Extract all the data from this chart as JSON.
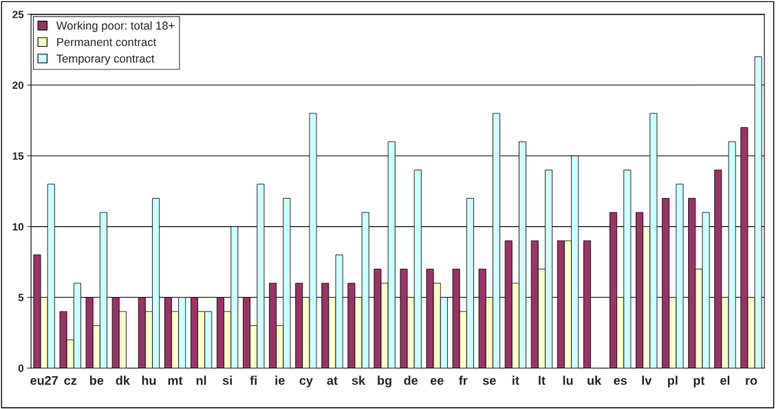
{
  "chart_data": {
    "type": "bar",
    "categories": [
      "eu27",
      "cz",
      "be",
      "dk",
      "hu",
      "mt",
      "nl",
      "si",
      "fi",
      "ie",
      "cy",
      "at",
      "sk",
      "bg",
      "de",
      "ee",
      "fr",
      "se",
      "it",
      "lt",
      "lu",
      "uk",
      "es",
      "lv",
      "pl",
      "pt",
      "el",
      "ro"
    ],
    "series": [
      {
        "name": "Working poor: total 18+",
        "color": "#993366",
        "values": [
          8,
          4,
          5,
          5,
          5,
          5,
          5,
          5,
          5,
          6,
          6,
          6,
          6,
          7,
          7,
          7,
          7,
          7,
          9,
          9,
          9,
          9,
          11,
          11,
          12,
          12,
          14,
          17
        ]
      },
      {
        "name": "Permanent contract",
        "color": "#ffffcc",
        "values": [
          5,
          2,
          3,
          4,
          4,
          4,
          4,
          4,
          3,
          3,
          5,
          5,
          5,
          6,
          5,
          6,
          4,
          5,
          6,
          7,
          9,
          null,
          5,
          10,
          5,
          7,
          5,
          5
        ]
      },
      {
        "name": "Temporary contract",
        "color": "#ccffff",
        "values": [
          13,
          6,
          11,
          null,
          12,
          5,
          4,
          10,
          13,
          12,
          18,
          8,
          11,
          16,
          14,
          5,
          12,
          18,
          16,
          14,
          15,
          null,
          14,
          18,
          13,
          11,
          16,
          22
        ]
      }
    ],
    "ylim": [
      0,
      25
    ],
    "yticks": [
      0,
      5,
      10,
      15,
      20,
      25
    ],
    "grid": "y",
    "legend": "top left"
  }
}
